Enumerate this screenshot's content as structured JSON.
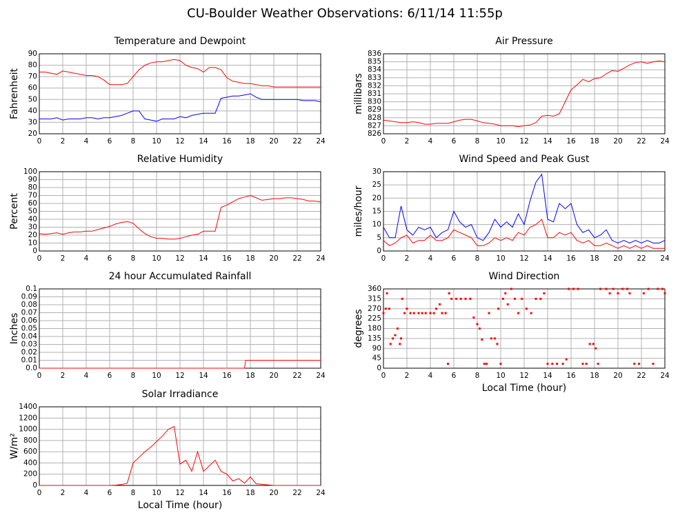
{
  "title": "CU-Boulder Weather Observations: 6/11/14 11:55p",
  "chart_data": [
    {
      "type": "line",
      "title": "Temperature and Dewpoint",
      "y_label": "Fahrenheit",
      "x": [
        0,
        0.5,
        1,
        1.5,
        2,
        2.5,
        3,
        3.5,
        4,
        4.5,
        5,
        5.5,
        6,
        6.5,
        7,
        7.5,
        8,
        8.5,
        9,
        9.5,
        10,
        10.5,
        11,
        11.5,
        12,
        12.5,
        13,
        13.5,
        14,
        14.5,
        15,
        15.5,
        16,
        16.5,
        17,
        17.5,
        18,
        18.5,
        19,
        19.5,
        20,
        20.5,
        21,
        21.5,
        22,
        22.5,
        23,
        23.5,
        24
      ],
      "series": [
        {
          "color": "#ff0000",
          "values": [
            74,
            74,
            73,
            72,
            75,
            74,
            73,
            72,
            71,
            71,
            70,
            67,
            63,
            63,
            63,
            64,
            70,
            76,
            80,
            82,
            83,
            83,
            84,
            85,
            84,
            80,
            78,
            77,
            74,
            78,
            78,
            76,
            69,
            66,
            65,
            64,
            64,
            63,
            62,
            62,
            61,
            61,
            61,
            61,
            61,
            61,
            61,
            61,
            61
          ]
        },
        {
          "color": "#0000ff",
          "values": [
            33,
            33,
            33,
            34,
            32,
            33,
            33,
            33,
            34,
            34,
            33,
            34,
            34,
            35,
            36,
            38,
            40,
            40,
            33,
            32,
            31,
            33,
            33,
            33,
            35,
            34,
            36,
            37,
            38,
            38,
            38,
            51,
            52,
            53,
            53,
            54,
            55,
            52,
            50,
            50,
            50,
            50,
            50,
            50,
            50,
            49,
            49,
            49,
            48
          ]
        }
      ],
      "xlim": [
        0,
        24
      ],
      "xticks": [
        0,
        2,
        4,
        6,
        8,
        10,
        12,
        14,
        16,
        18,
        20,
        22,
        24
      ],
      "ylim": [
        20,
        90
      ],
      "yticks": [
        20,
        30,
        40,
        50,
        60,
        70,
        80,
        90
      ],
      "grid": true
    },
    {
      "type": "line",
      "title": "Air Pressure",
      "y_label": "millibars",
      "x": [
        0,
        0.5,
        1,
        1.5,
        2,
        2.5,
        3,
        3.5,
        4,
        4.5,
        5,
        5.5,
        6,
        6.5,
        7,
        7.5,
        8,
        8.5,
        9,
        9.5,
        10,
        10.5,
        11,
        11.5,
        12,
        12.5,
        13,
        13.5,
        14,
        14.5,
        15,
        15.5,
        16,
        16.5,
        17,
        17.5,
        18,
        18.5,
        19,
        19.5,
        20,
        20.5,
        21,
        21.5,
        22,
        22.5,
        23,
        23.5,
        24
      ],
      "series": [
        {
          "color": "#ff0000",
          "values": [
            827.7,
            827.6,
            827.5,
            827.4,
            827.4,
            827.5,
            827.4,
            827.2,
            827.2,
            827.3,
            827.3,
            827.3,
            827.5,
            827.7,
            827.8,
            827.8,
            827.6,
            827.4,
            827.3,
            827.2,
            827.0,
            827.0,
            827.0,
            826.9,
            827.0,
            827.1,
            827.4,
            828.2,
            828.3,
            828.2,
            828.5,
            830.0,
            831.5,
            832.1,
            832.8,
            832.5,
            832.9,
            833.0,
            833.5,
            833.9,
            833.8,
            834.2,
            834.6,
            834.9,
            835.0,
            834.8,
            835.0,
            835.1,
            835.0
          ]
        }
      ],
      "xlim": [
        0,
        24
      ],
      "xticks": [
        0,
        2,
        4,
        6,
        8,
        10,
        12,
        14,
        16,
        18,
        20,
        22,
        24
      ],
      "ylim": [
        826,
        836
      ],
      "yticks": [
        826,
        827,
        828,
        829,
        830,
        831,
        832,
        833,
        834,
        835,
        836
      ],
      "grid": true
    },
    {
      "type": "line",
      "title": "Relative Humidity",
      "y_label": "Percent",
      "x": [
        0,
        0.5,
        1,
        1.5,
        2,
        2.5,
        3,
        3.5,
        4,
        4.5,
        5,
        5.5,
        6,
        6.5,
        7,
        7.5,
        8,
        8.5,
        9,
        9.5,
        10,
        10.5,
        11,
        11.5,
        12,
        12.5,
        13,
        13.5,
        14,
        14.5,
        15,
        15.5,
        16,
        16.5,
        17,
        17.5,
        18,
        18.5,
        19,
        19.5,
        20,
        20.5,
        21,
        21.5,
        22,
        22.5,
        23,
        23.5,
        24
      ],
      "series": [
        {
          "color": "#ff0000",
          "values": [
            22,
            21,
            22,
            23,
            21,
            23,
            24,
            24,
            25,
            25,
            27,
            29,
            31,
            34,
            36,
            37,
            35,
            28,
            22,
            18,
            16,
            16,
            15,
            15,
            16,
            18,
            20,
            21,
            25,
            25,
            25,
            55,
            58,
            62,
            66,
            68,
            70,
            67,
            64,
            65,
            66,
            66,
            67,
            67,
            66,
            65,
            63,
            63,
            62
          ]
        }
      ],
      "xlim": [
        0,
        24
      ],
      "xticks": [
        0,
        2,
        4,
        6,
        8,
        10,
        12,
        14,
        16,
        18,
        20,
        22,
        24
      ],
      "ylim": [
        0,
        100
      ],
      "yticks": [
        0,
        10,
        20,
        30,
        40,
        50,
        60,
        70,
        80,
        90,
        100
      ],
      "grid": true
    },
    {
      "type": "line",
      "title": "Wind Speed and Peak Gust",
      "y_label": "miles/hour",
      "x": [
        0,
        0.5,
        1,
        1.5,
        2,
        2.5,
        3,
        3.5,
        4,
        4.5,
        5,
        5.5,
        6,
        6.5,
        7,
        7.5,
        8,
        8.5,
        9,
        9.5,
        10,
        10.5,
        11,
        11.5,
        12,
        12.5,
        13,
        13.5,
        14,
        14.5,
        15,
        15.5,
        16,
        16.5,
        17,
        17.5,
        18,
        18.5,
        19,
        19.5,
        20,
        20.5,
        21,
        21.5,
        22,
        22.5,
        23,
        23.5,
        24
      ],
      "series": [
        {
          "color": "#0000ff",
          "values": [
            9,
            5,
            5,
            17,
            8,
            6,
            9,
            8,
            9,
            5,
            7,
            8,
            15,
            11,
            9,
            10,
            5,
            4,
            7,
            12,
            9,
            11,
            9,
            14,
            10,
            19,
            26,
            29,
            12,
            11,
            18,
            16,
            18,
            10,
            7,
            8,
            5,
            6,
            8,
            4,
            3,
            4,
            3,
            4,
            3,
            4,
            3,
            3,
            4
          ]
        },
        {
          "color": "#ff0000",
          "values": [
            4,
            2,
            3,
            5,
            6,
            3,
            4,
            4,
            6,
            4,
            4,
            5,
            8,
            7,
            6,
            5,
            2,
            2,
            3,
            5,
            4,
            5,
            4,
            7,
            6,
            9,
            10,
            12,
            5,
            5,
            7,
            6,
            7,
            4,
            3,
            4,
            2,
            2,
            3,
            2,
            1,
            2,
            1,
            2,
            1,
            2,
            1,
            1,
            1
          ]
        }
      ],
      "xlim": [
        0,
        24
      ],
      "xticks": [
        0,
        2,
        4,
        6,
        8,
        10,
        12,
        14,
        16,
        18,
        20,
        22,
        24
      ],
      "ylim": [
        0,
        30
      ],
      "yticks": [
        0,
        5,
        10,
        15,
        20,
        25,
        30
      ],
      "grid": true
    },
    {
      "type": "line",
      "title": "24 hour Accumulated Rainfall",
      "y_label": "Inches",
      "x": [
        0,
        17.5,
        17.6,
        24
      ],
      "series": [
        {
          "color": "#ff0000",
          "values": [
            0,
            0,
            0.01,
            0.01
          ]
        }
      ],
      "xlim": [
        0,
        24
      ],
      "xticks": [
        0,
        2,
        4,
        6,
        8,
        10,
        12,
        14,
        16,
        18,
        20,
        22,
        24
      ],
      "ylim": [
        0,
        0.1
      ],
      "yticks": [
        {
          "value": 0,
          "label": "0.0"
        },
        0.01,
        0.02,
        0.03,
        0.04,
        0.05,
        0.06,
        0.07,
        0.08,
        0.09,
        0.1
      ],
      "grid": true
    },
    {
      "type": "scatter",
      "title": "Wind Direction",
      "y_label": "degrees",
      "x_label": "Local Time (hour)",
      "x": [
        0,
        0.2,
        0.3,
        0.5,
        0.6,
        0.8,
        1,
        1.2,
        1.4,
        1.5,
        1.6,
        1.8,
        2,
        2.3,
        2.6,
        3,
        3.3,
        3.6,
        4,
        4.3,
        4.5,
        4.8,
        5,
        5.3,
        5.5,
        5.6,
        5.8,
        6.2,
        6.6,
        7,
        7.4,
        7.7,
        8,
        8.2,
        8.4,
        8.6,
        8.8,
        9,
        9.2,
        9.5,
        9.7,
        9.8,
        10,
        10.2,
        10.4,
        10.6,
        10.9,
        11.2,
        11.5,
        11.8,
        12.2,
        12.6,
        13,
        13.4,
        13.7,
        14,
        14.4,
        14.8,
        15.3,
        15.6,
        15.8,
        16.2,
        16.6,
        17,
        17.3,
        17.6,
        17.9,
        18.1,
        18.3,
        18.5,
        19,
        19.3,
        19.6,
        20,
        20.4,
        20.8,
        21,
        21.4,
        21.8,
        22.2,
        22.6,
        23,
        23.4,
        23.8,
        24
      ],
      "series": [
        {
          "color": "#ff0000",
          "values": [
            250,
            270,
            340,
            270,
            110,
            135,
            150,
            180,
            110,
            135,
            315,
            250,
            270,
            250,
            250,
            250,
            250,
            250,
            250,
            250,
            270,
            290,
            250,
            250,
            20,
            340,
            315,
            315,
            315,
            315,
            315,
            230,
            200,
            180,
            130,
            20,
            20,
            250,
            135,
            135,
            110,
            270,
            20,
            315,
            340,
            290,
            360,
            315,
            250,
            315,
            270,
            250,
            315,
            315,
            340,
            20,
            20,
            20,
            20,
            40,
            360,
            360,
            360,
            20,
            20,
            110,
            110,
            90,
            20,
            360,
            360,
            340,
            360,
            340,
            360,
            360,
            340,
            20,
            20,
            340,
            360,
            20,
            360,
            360,
            340
          ]
        }
      ],
      "xlim": [
        0,
        24
      ],
      "xticks": [
        0,
        2,
        4,
        6,
        8,
        10,
        12,
        14,
        16,
        18,
        20,
        22,
        24
      ],
      "ylim": [
        0,
        360
      ],
      "yticks": [
        0,
        45,
        90,
        135,
        180,
        225,
        270,
        315,
        360
      ],
      "grid": true
    },
    {
      "type": "line",
      "title": "Solar Irradiance",
      "y_label": "W/m²",
      "x_label": "Local Time (hour)",
      "x": [
        0,
        0.5,
        1,
        1.5,
        2,
        2.5,
        3,
        3.5,
        4,
        4.5,
        5,
        5.5,
        6,
        6.5,
        7,
        7.5,
        8,
        8.5,
        9,
        9.5,
        10,
        10.5,
        11,
        11.5,
        12,
        12.5,
        13,
        13.5,
        14,
        14.5,
        15,
        15.5,
        16,
        16.5,
        17,
        17.5,
        18,
        18.5,
        19,
        19.5,
        20,
        20.5,
        21,
        21.5,
        22,
        22.5,
        23,
        23.5,
        24
      ],
      "series": [
        {
          "color": "#ff0000",
          "values": [
            0,
            0,
            0,
            0,
            0,
            0,
            0,
            0,
            0,
            0,
            0,
            0,
            0,
            5,
            15,
            40,
            400,
            500,
            600,
            680,
            780,
            880,
            1000,
            1050,
            380,
            450,
            250,
            600,
            250,
            350,
            450,
            250,
            200,
            80,
            120,
            40,
            150,
            30,
            20,
            10,
            0,
            0,
            0,
            0,
            0,
            0,
            0,
            0,
            0
          ]
        }
      ],
      "xlim": [
        0,
        24
      ],
      "xticks": [
        0,
        2,
        4,
        6,
        8,
        10,
        12,
        14,
        16,
        18,
        20,
        22,
        24
      ],
      "ylim": [
        0,
        1400
      ],
      "yticks": [
        0,
        200,
        400,
        600,
        800,
        1000,
        1200,
        1400
      ],
      "grid": true
    }
  ]
}
